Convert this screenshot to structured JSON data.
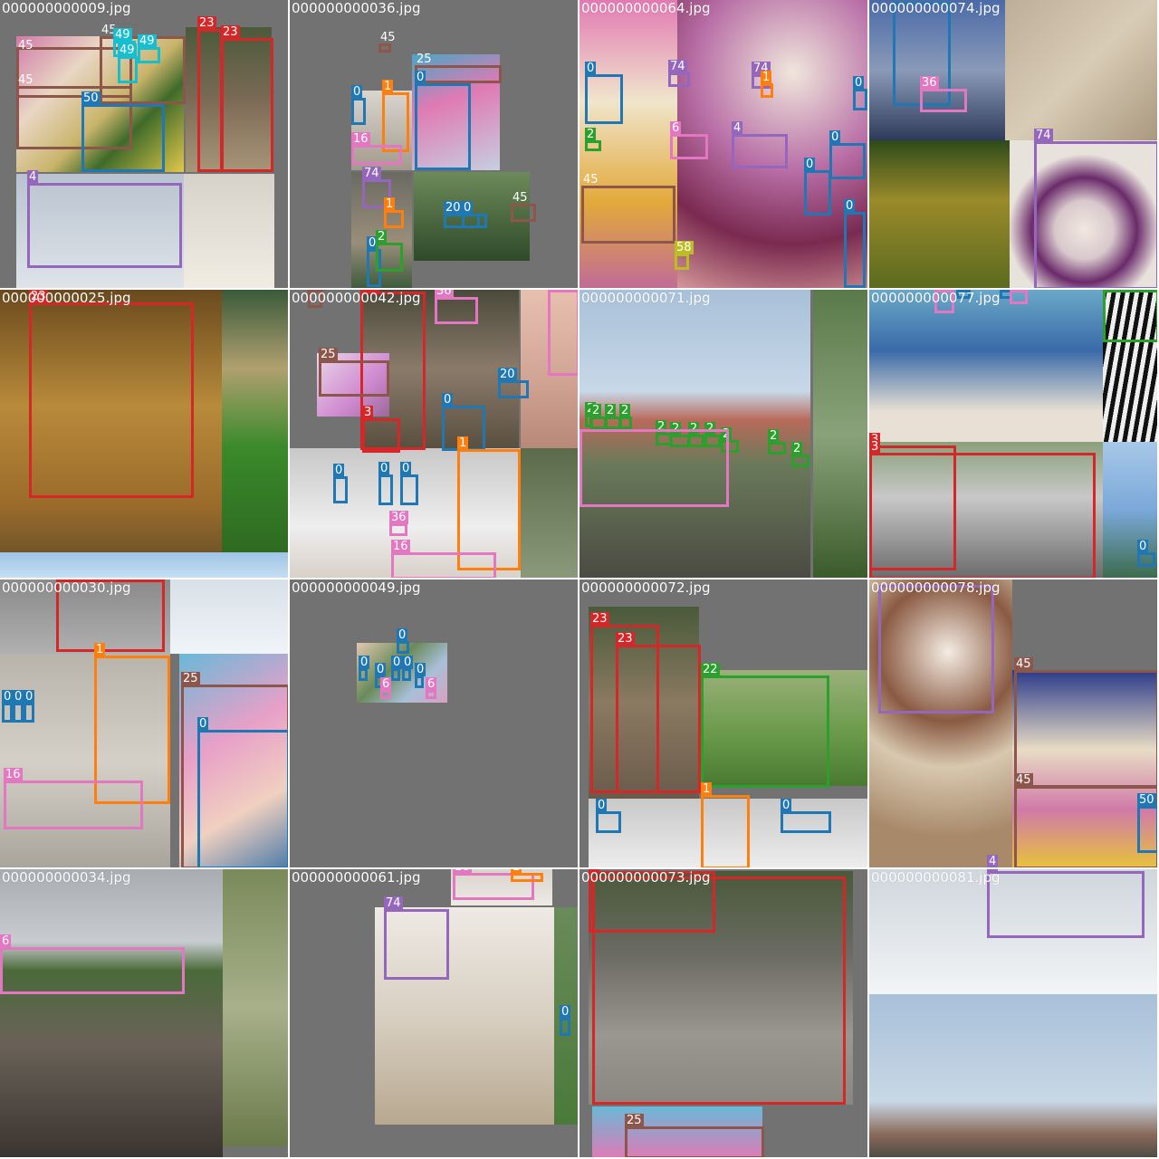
{
  "colors": {
    "person": "#1f77b4",
    "bicycle": "#ff7f0e",
    "car": "#2ca02c",
    "motorcycle": "#d62728",
    "airplane": "#9467bd",
    "giraffe": "#d62728",
    "zebra": "#2ca02c",
    "train": "#e377c2",
    "dog": "#e377c2",
    "umbrella": "#8c564b",
    "bowl": "#8c564b",
    "broccoli": "#1f77b4",
    "orange": "#17becf",
    "clock": "#9467bd",
    "skateboard": "#e377c2",
    "bird": "#d62728",
    "vase": "#bcbd22",
    "potted": "#2ca02c",
    "background": "#727272"
  },
  "cells": [
    {
      "filename": "000000000009.jpg",
      "labels": [
        "45",
        "45",
        "49",
        "49",
        "49",
        "45",
        "50",
        "23",
        "23",
        "4"
      ]
    },
    {
      "filename": "000000000036.jpg",
      "labels": [
        "45",
        "25",
        "1",
        "0",
        "0",
        "16",
        "74",
        "1",
        "20",
        "0",
        "45",
        "0",
        "2"
      ]
    },
    {
      "filename": "000000000064.jpg",
      "labels": [
        "0",
        "74",
        "74",
        "1",
        "0",
        "2",
        "6",
        "4",
        "0",
        "0",
        "45",
        "0",
        "58"
      ]
    },
    {
      "filename": "000000000074.jpg",
      "labels": [
        "36",
        "74"
      ]
    },
    {
      "filename": "000000000025.jpg",
      "labels": [
        "23"
      ]
    },
    {
      "filename": "000000000042.jpg",
      "labels": [
        "75",
        "23",
        "36",
        "16",
        "25",
        "20",
        "0",
        "3",
        "1",
        "0",
        "0",
        "0",
        "36",
        "16"
      ]
    },
    {
      "filename": "000000000071.jpg",
      "labels": [
        "2",
        "2",
        "2",
        "2",
        "2",
        "2",
        "2",
        "2",
        "2",
        "2",
        "2"
      ]
    },
    {
      "filename": "000000000077.jpg",
      "labels": [
        "36",
        "0",
        "0",
        "36",
        "22",
        "3",
        "3",
        "0"
      ]
    },
    {
      "filename": "000000000030.jpg",
      "labels": [
        "3",
        "1",
        "25",
        "0",
        "0",
        "0",
        "0",
        "16"
      ]
    },
    {
      "filename": "000000000049.jpg",
      "labels": [
        "0",
        "0",
        "0",
        "0",
        "0",
        "0",
        "6",
        "6"
      ]
    },
    {
      "filename": "000000000072.jpg",
      "labels": [
        "23",
        "23",
        "22",
        "1",
        "0",
        "0"
      ]
    },
    {
      "filename": "000000000078.jpg",
      "labels": [
        "45",
        "45",
        "50",
        "4"
      ]
    },
    {
      "filename": "000000000034.jpg",
      "labels": [
        "6"
      ]
    },
    {
      "filename": "000000000061.jpg",
      "labels": [
        "16",
        "1",
        "74",
        "0"
      ]
    },
    {
      "filename": "000000000073.jpg",
      "labels": [
        "3",
        "25"
      ]
    },
    {
      "filename": "000000000081.jpg",
      "labels": [
        "4"
      ]
    }
  ]
}
